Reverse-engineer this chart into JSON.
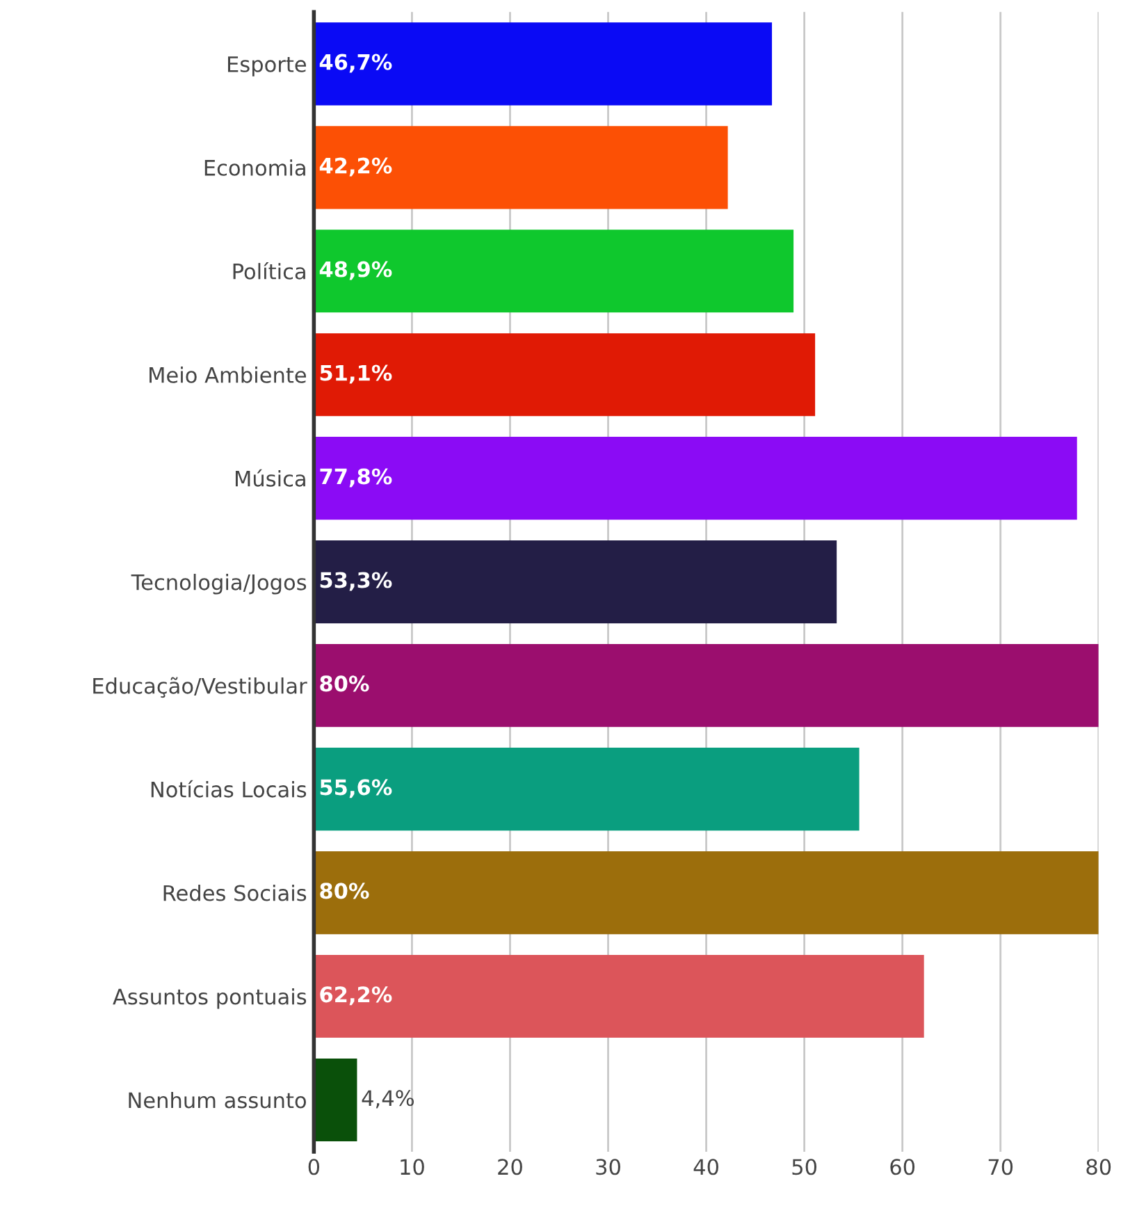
{
  "chart_data": {
    "type": "bar",
    "orientation": "horizontal",
    "categories": [
      "Esporte",
      "Economia",
      "Política",
      "Meio Ambiente",
      "Música",
      "Tecnologia/Jogos",
      "Educação/Vestibular",
      "Notícias Locais",
      "Redes Sociais",
      "Assuntos pontuais",
      "Nenhum assunto"
    ],
    "values": [
      46.7,
      42.2,
      48.9,
      51.1,
      77.8,
      53.3,
      80,
      55.6,
      80,
      62.2,
      4.4
    ],
    "value_labels": [
      "46,7%",
      "42,2%",
      "48,9%",
      "51,1%",
      "77,8%",
      "53,3%",
      "80%",
      "55,6%",
      "80%",
      "62,2%",
      "4,4%"
    ],
    "colors": [
      "#0a0af5",
      "#fc5005",
      "#0fc82d",
      "#e01a05",
      "#8b0bf5",
      "#231e46",
      "#9b0e6e",
      "#0a9e7f",
      "#9c6e0c",
      "#dc555a",
      "#0a500a"
    ],
    "xlim": [
      0,
      80
    ],
    "xticks": [
      0,
      10,
      20,
      30,
      40,
      50,
      60,
      70,
      80
    ],
    "grid": "x"
  }
}
